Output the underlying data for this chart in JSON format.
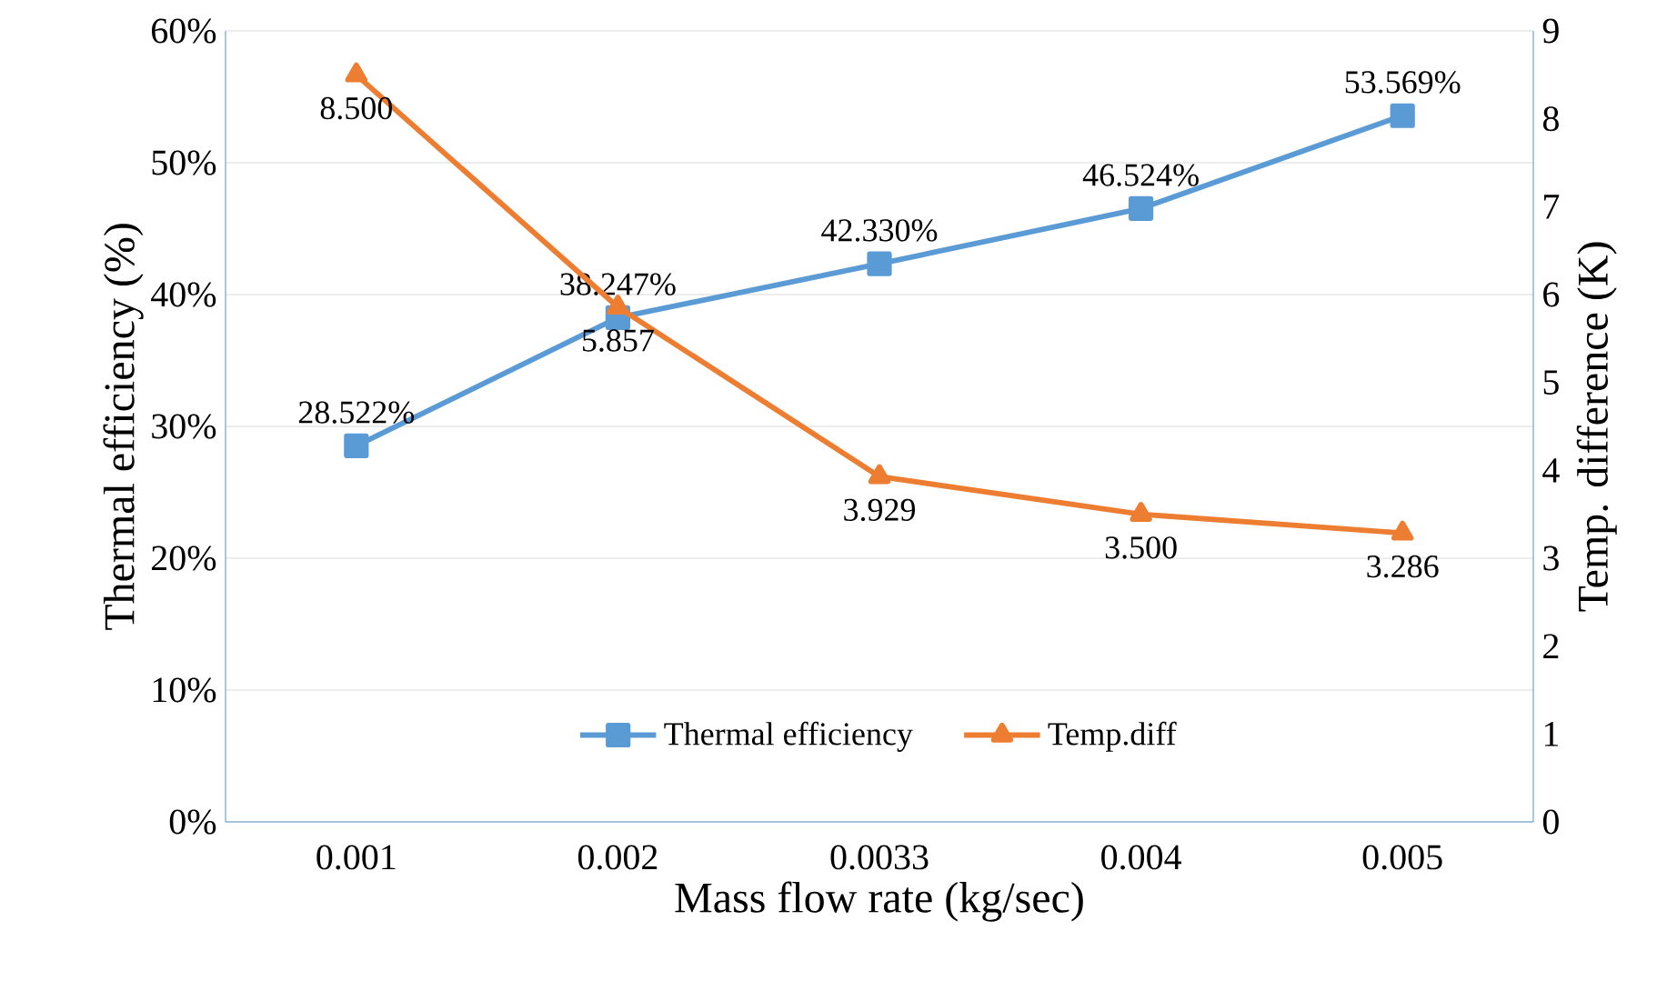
{
  "chart_data": {
    "type": "line",
    "xlabel": "Mass flow rate (kg/sec)",
    "ylabel": "Thermal efficiency (%)",
    "y2label": "Temp. difference (K)",
    "categories": [
      "0.001",
      "0.002",
      "0.0033",
      "0.004",
      "0.005"
    ],
    "series": [
      {
        "name": "Thermal efficiency",
        "color": "#5b9bd5",
        "marker": "square",
        "values": [
          28.522,
          38.247,
          42.33,
          46.524,
          53.569
        ],
        "value_labels": [
          "28.522%",
          "38.247%",
          "42.330%",
          "46.524%",
          "53.569%"
        ]
      },
      {
        "name": "Temp.diff",
        "color": "#ed7d31",
        "marker": "triangle",
        "axis": "y2",
        "values": [
          8.5,
          5.857,
          3.929,
          3.5,
          3.286
        ],
        "value_labels": [
          "8.500",
          "5.857",
          "3.929",
          "3.500",
          "3.286"
        ]
      }
    ],
    "ylim": [
      0,
      60
    ],
    "yticks": [
      {
        "value": 0,
        "label": "0%"
      },
      {
        "value": 10,
        "label": "10%"
      },
      {
        "value": 20,
        "label": "20%"
      },
      {
        "value": 30,
        "label": "30%"
      },
      {
        "value": 40,
        "label": "40%"
      },
      {
        "value": 50,
        "label": "50%"
      },
      {
        "value": 60,
        "label": "60%"
      }
    ],
    "y2lim": [
      0,
      9
    ],
    "y2ticks": [
      0,
      1,
      2,
      3,
      4,
      5,
      6,
      7,
      8,
      9
    ],
    "grid": "y",
    "legend": "bottom"
  }
}
